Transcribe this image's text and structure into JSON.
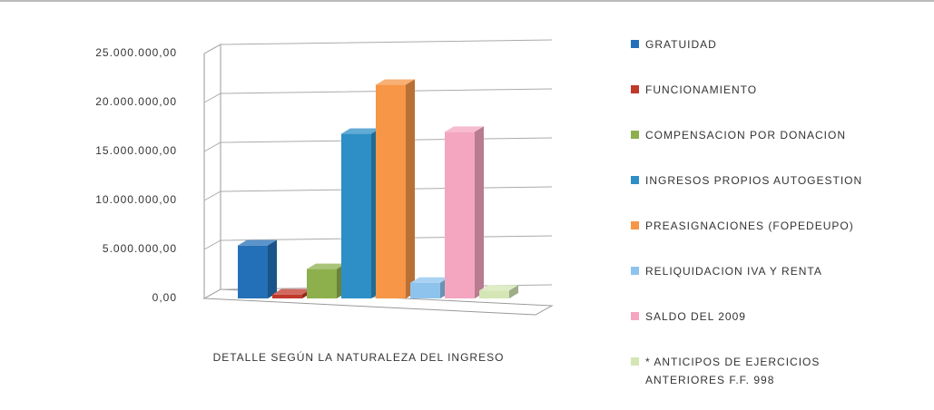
{
  "chart_data": {
    "type": "bar3d",
    "categories": [
      "DETALLE SEGÚN LA NATURALEZA DEL INGRESO"
    ],
    "series": [
      {
        "name": "GRATUIDAD",
        "color": "#2470b8",
        "values": [
          5400000
        ]
      },
      {
        "name": "FUNCIONAMIENTO",
        "color": "#c0392b",
        "values": [
          400000
        ]
      },
      {
        "name": "COMPENSACION POR DONACION",
        "color": "#8db04c",
        "values": [
          3000000
        ]
      },
      {
        "name": "INGRESOS PROPIOS AUTOGESTION",
        "color": "#2d8fc6",
        "values": [
          16800000
        ]
      },
      {
        "name": "PREASIGNACIONES (FOPEDEUPO)",
        "color": "#f79646",
        "values": [
          21800000
        ]
      },
      {
        "name": "RELIQUIDACION IVA Y RENTA",
        "color": "#8ec3ee",
        "values": [
          1600000
        ]
      },
      {
        "name": "SALDO DEL 2009",
        "color": "#f4a6c0",
        "values": [
          17000000
        ]
      },
      {
        "name": "* ANTICIPOS DE EJERCICIOS ANTERIORES F.F. 998",
        "color": "#d3e6b4",
        "values": [
          800000
        ]
      }
    ],
    "ylim": [
      0,
      25000000
    ],
    "yticks": [
      {
        "value": 0,
        "label": "0,00"
      },
      {
        "value": 5000000,
        "label": "5.000.000,00"
      },
      {
        "value": 10000000,
        "label": "10.000.000,00"
      },
      {
        "value": 15000000,
        "label": "15.000.000,00"
      },
      {
        "value": 20000000,
        "label": "20.000.000,00"
      },
      {
        "value": 25000000,
        "label": "25.000.000,00"
      }
    ],
    "grid": true,
    "legend": "right"
  }
}
